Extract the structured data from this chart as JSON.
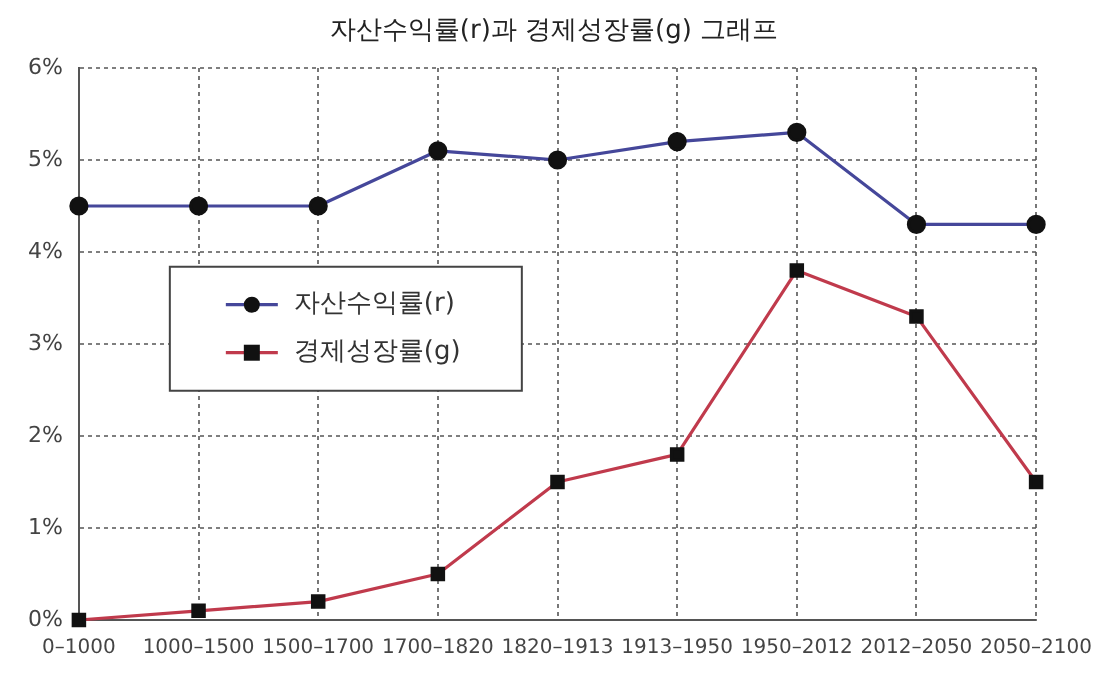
{
  "chart_data": {
    "type": "line",
    "title": "자산수익률(r)과 경제성장률(g) 그래프",
    "categories": [
      "0–1000",
      "1000–1500",
      "1500–1700",
      "1700–1820",
      "1820–1913",
      "1913–1950",
      "1950–2012",
      "2012–2050",
      "2050–2100"
    ],
    "series": [
      {
        "name": "자산수익률(r)",
        "color": "#45479a",
        "marker": "circle",
        "values": [
          4.5,
          4.5,
          4.5,
          5.1,
          5.0,
          5.2,
          5.3,
          4.3,
          4.3
        ]
      },
      {
        "name": "경제성장률(g)",
        "color": "#c03a4c",
        "marker": "square",
        "values": [
          0,
          0.1,
          0.2,
          0.5,
          1.5,
          1.8,
          3.8,
          3.3,
          1.5
        ]
      }
    ],
    "ylim": [
      0,
      6
    ],
    "yticks": [
      {
        "value": 0,
        "label": "0%"
      },
      {
        "value": 1,
        "label": "1%"
      },
      {
        "value": 2,
        "label": "2%"
      },
      {
        "value": 3,
        "label": "3%"
      },
      {
        "value": 4,
        "label": "4%"
      },
      {
        "value": 5,
        "label": "5%"
      },
      {
        "value": 6,
        "label": "6%"
      }
    ],
    "grid": true,
    "legend": "left",
    "line_style": "solid"
  }
}
